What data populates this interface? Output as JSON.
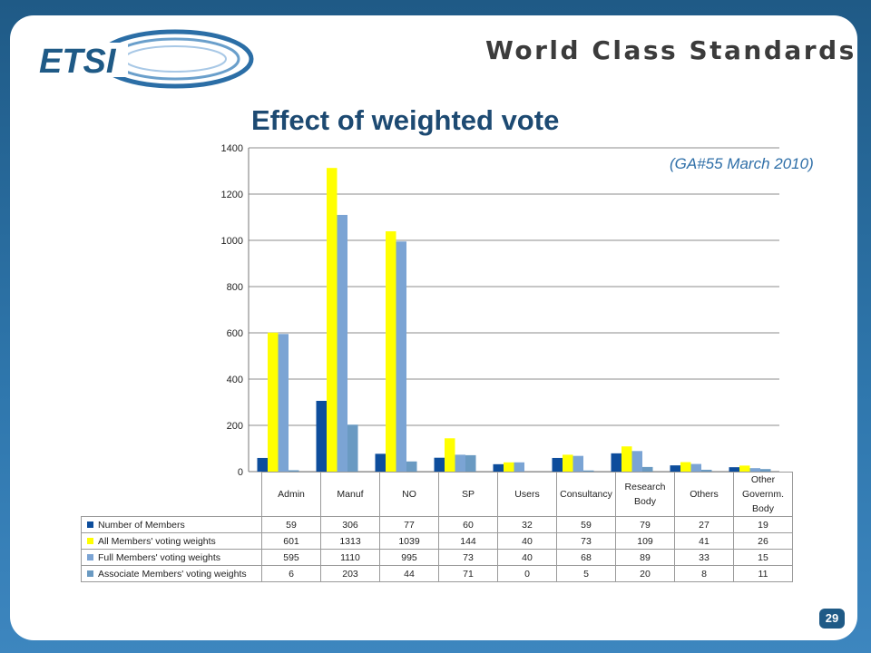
{
  "header": {
    "logo_text": "ETSI",
    "tagline": "World Class Standards"
  },
  "slide": {
    "title": "Effect of weighted vote",
    "subtitle": "(GA#55 March 2010)",
    "page_number": "29"
  },
  "chart_data": {
    "type": "bar",
    "title": "",
    "xlabel": "",
    "ylabel": "",
    "ylim": [
      0,
      1400
    ],
    "yticks": [
      0,
      200,
      400,
      600,
      800,
      1000,
      1200,
      1400
    ],
    "grid": true,
    "legend": "data-table",
    "categories": [
      "Admin",
      "Manuf",
      "NO",
      "SP",
      "Users",
      "Consultancy",
      "Research Body",
      "Others",
      "Other Governm. Body"
    ],
    "series": [
      {
        "name": "Number of Members",
        "color": "#0d4d9c",
        "values": [
          59,
          306,
          77,
          60,
          32,
          59,
          79,
          27,
          19
        ]
      },
      {
        "name": "All Members' voting weights",
        "color": "#ffff00",
        "values": [
          601,
          1313,
          1039,
          144,
          40,
          73,
          109,
          41,
          26
        ]
      },
      {
        "name": "Full Members' voting weights",
        "color": "#7ba4d4",
        "values": [
          595,
          1110,
          995,
          73,
          40,
          68,
          89,
          33,
          15
        ]
      },
      {
        "name": "Associate Members' voting weights",
        "color": "#6a9ac2",
        "values": [
          6,
          203,
          44,
          71,
          0,
          5,
          20,
          8,
          11
        ]
      }
    ]
  }
}
